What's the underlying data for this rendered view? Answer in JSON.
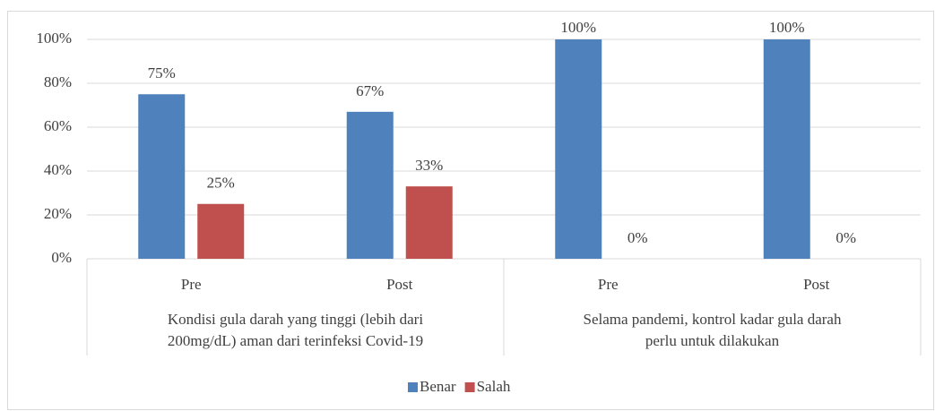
{
  "chart_data": {
    "type": "bar",
    "categories": [
      "Pre",
      "Post",
      "Pre",
      "Post"
    ],
    "groups": [
      {
        "label": [
          "Kondisi gula darah yang tinggi (lebih dari",
          "200mg/dL) aman dari terinfeksi Covid-19"
        ]
      },
      {
        "label": [
          "Selama pandemi, kontrol kadar gula darah",
          "perlu untuk dilakukan"
        ]
      }
    ],
    "series": [
      {
        "name": "Benar",
        "color": "#4f81bd",
        "values": [
          75,
          67,
          100,
          100
        ],
        "value_labels": [
          "75%",
          "67%",
          "100%",
          "100%"
        ]
      },
      {
        "name": "Salah",
        "color": "#c0504d",
        "values": [
          25,
          33,
          0,
          0
        ],
        "value_labels": [
          "25%",
          "33%",
          "0%",
          "0%"
        ]
      }
    ],
    "ylim": [
      0,
      100
    ],
    "yticks": [
      {
        "value": 0,
        "label": "0%"
      },
      {
        "value": 20,
        "label": "20%"
      },
      {
        "value": 40,
        "label": "40%"
      },
      {
        "value": 60,
        "label": "60%"
      },
      {
        "value": 80,
        "label": "80%"
      },
      {
        "value": 100,
        "label": "100%"
      }
    ],
    "grid": true,
    "legend": "bottom"
  }
}
